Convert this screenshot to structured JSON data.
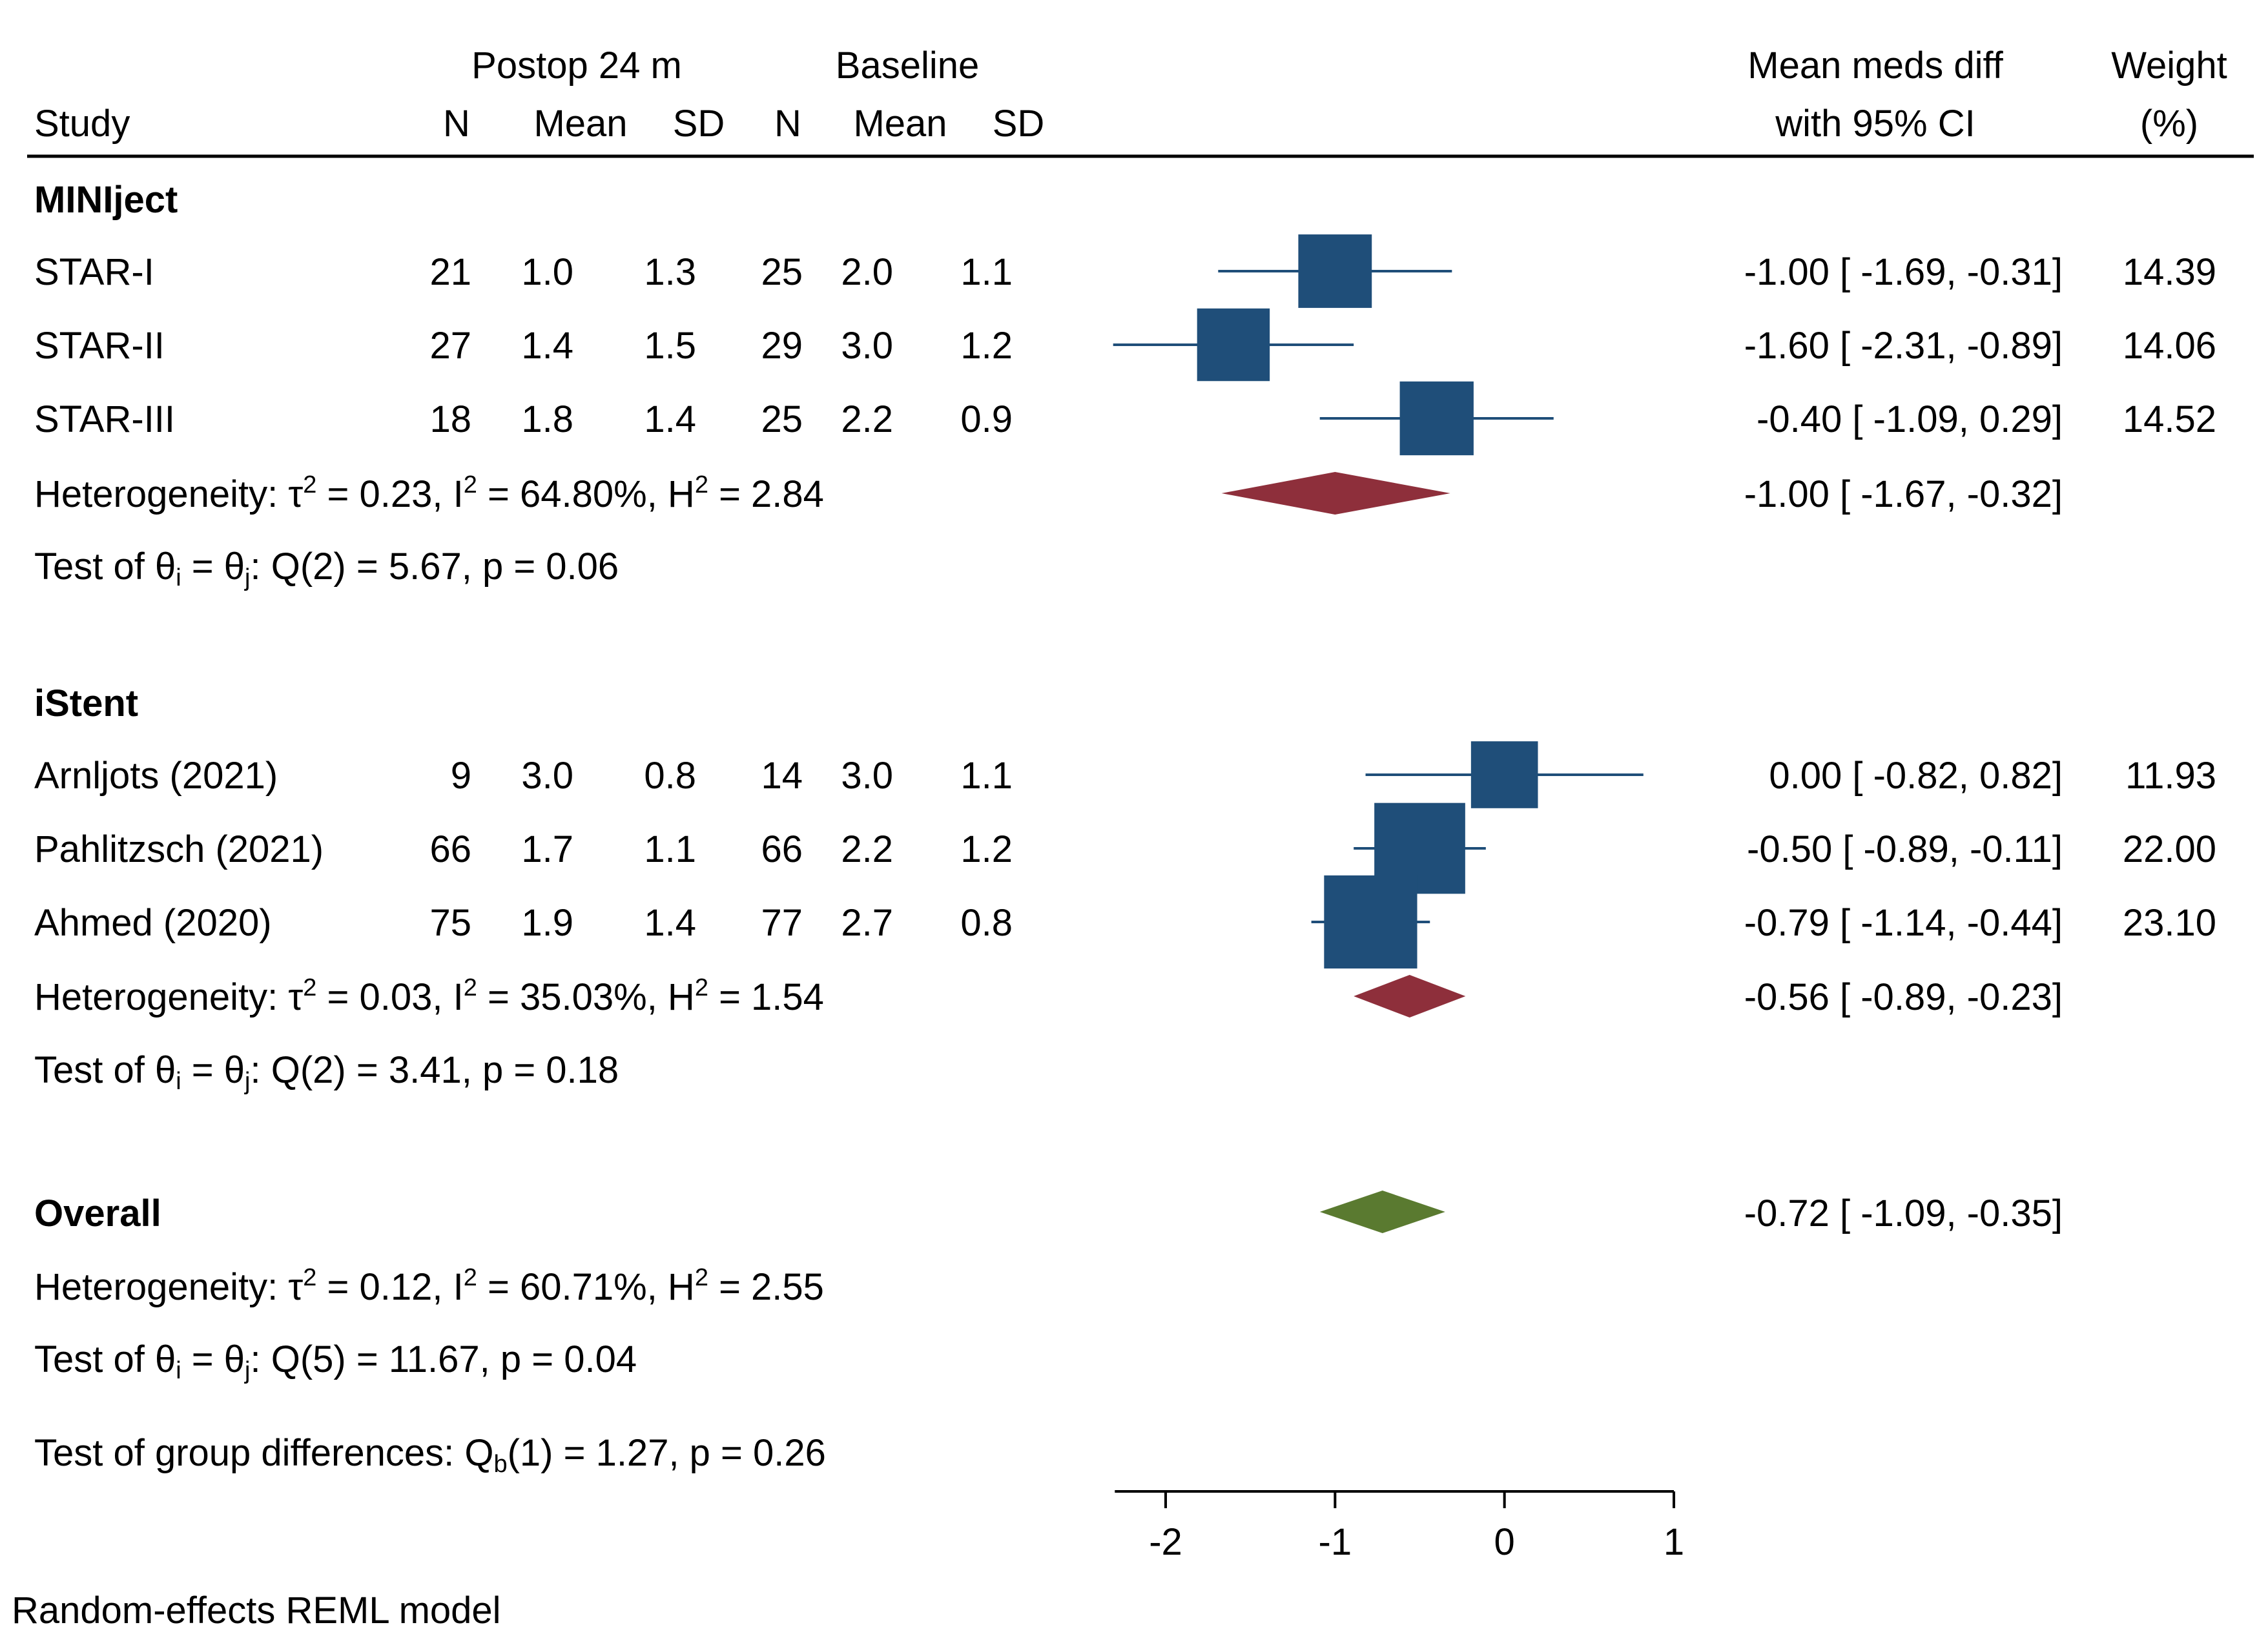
{
  "header": {
    "postop_group": "Postop 24 m",
    "baseline_group": "Baseline",
    "study": "Study",
    "n": "N",
    "mean": "Mean",
    "sd": "SD",
    "effect_line1": "Mean meds diff",
    "effect_line2": "with 95% CI",
    "weight_line1": "Weight",
    "weight_line2": "(%)"
  },
  "footer": {
    "group_test": "Test of group differences: Q",
    "group_test_sub": "b",
    "group_test_rest": "(1) = 1.27, p = 0.26",
    "model_note": "Random-effects REML model"
  },
  "colors": {
    "study_marker": "#1f4e79",
    "subgroup_diamond": "#8e2f3b",
    "overall_diamond": "#5a7a30",
    "axis": "#000000"
  },
  "chart_data": {
    "type": "forest",
    "xlim": [
      -2.3,
      1.0
    ],
    "x_ticks": [
      -2,
      -1,
      0,
      1
    ],
    "x_tick_labels": [
      "-2",
      "-1",
      "0",
      "1"
    ],
    "groups": [
      {
        "name": "MINIject",
        "studies": [
          {
            "study": "STAR-I",
            "post_n": "21",
            "post_mean": "1.0",
            "post_sd": "1.3",
            "base_n": "25",
            "base_mean": "2.0",
            "base_sd": "1.1",
            "est": -1.0,
            "lo": -1.69,
            "hi": -0.31,
            "ci_text": "-1.00 [ -1.69,  -0.31]",
            "weight": 14.39,
            "weight_text": "14.39"
          },
          {
            "study": "STAR-II",
            "post_n": "27",
            "post_mean": "1.4",
            "post_sd": "1.5",
            "base_n": "29",
            "base_mean": "3.0",
            "base_sd": "1.2",
            "est": -1.6,
            "lo": -2.31,
            "hi": -0.89,
            "ci_text": "-1.60 [ -2.31,  -0.89]",
            "weight": 14.06,
            "weight_text": "14.06"
          },
          {
            "study": "STAR-III",
            "post_n": "18",
            "post_mean": "1.8",
            "post_sd": "1.4",
            "base_n": "25",
            "base_mean": "2.2",
            "base_sd": "0.9",
            "est": -0.4,
            "lo": -1.09,
            "hi": 0.29,
            "ci_text": "-0.40 [ -1.09,   0.29]",
            "weight": 14.52,
            "weight_text": "14.52"
          }
        ],
        "pooled": {
          "est": -1.0,
          "lo": -1.67,
          "hi": -0.32,
          "ci_text": "-1.00 [ -1.67,  -0.32]"
        },
        "heterogeneity": {
          "tau2": "0.23",
          "i2": "64.80%",
          "h2": "2.84"
        },
        "test": {
          "df": "2",
          "q": "5.67",
          "p": "0.06"
        }
      },
      {
        "name": "iStent",
        "studies": [
          {
            "study": "Arnljots (2021)",
            "post_n": "9",
            "post_mean": "3.0",
            "post_sd": "0.8",
            "base_n": "14",
            "base_mean": "3.0",
            "base_sd": "1.1",
            "est": 0.0,
            "lo": -0.82,
            "hi": 0.82,
            "ci_text": "0.00 [ -0.82,   0.82]",
            "weight": 11.93,
            "weight_text": "11.93"
          },
          {
            "study": "Pahlitzsch (2021)",
            "post_n": "66",
            "post_mean": "1.7",
            "post_sd": "1.1",
            "base_n": "66",
            "base_mean": "2.2",
            "base_sd": "1.2",
            "est": -0.5,
            "lo": -0.89,
            "hi": -0.11,
            "ci_text": "-0.50 [ -0.89,  -0.11]",
            "weight": 22.0,
            "weight_text": "22.00"
          },
          {
            "study": "Ahmed (2020)",
            "post_n": "75",
            "post_mean": "1.9",
            "post_sd": "1.4",
            "base_n": "77",
            "base_mean": "2.7",
            "base_sd": "0.8",
            "est": -0.79,
            "lo": -1.14,
            "hi": -0.44,
            "ci_text": "-0.79 [ -1.14,  -0.44]",
            "weight": 23.1,
            "weight_text": "23.10"
          }
        ],
        "pooled": {
          "est": -0.56,
          "lo": -0.89,
          "hi": -0.23,
          "ci_text": "-0.56 [ -0.89,  -0.23]"
        },
        "heterogeneity": {
          "tau2": "0.03",
          "i2": "35.03%",
          "h2": "1.54"
        },
        "test": {
          "df": "2",
          "q": "3.41",
          "p": "0.18"
        }
      }
    ],
    "overall": {
      "name": "Overall",
      "est": -0.72,
      "lo": -1.09,
      "hi": -0.35,
      "ci_text": "-0.72 [ -1.09,  -0.35]",
      "heterogeneity": {
        "tau2": "0.12",
        "i2": "60.71%",
        "h2": "2.55"
      },
      "test": {
        "df": "5",
        "q": "11.67",
        "p": "0.04"
      }
    }
  }
}
